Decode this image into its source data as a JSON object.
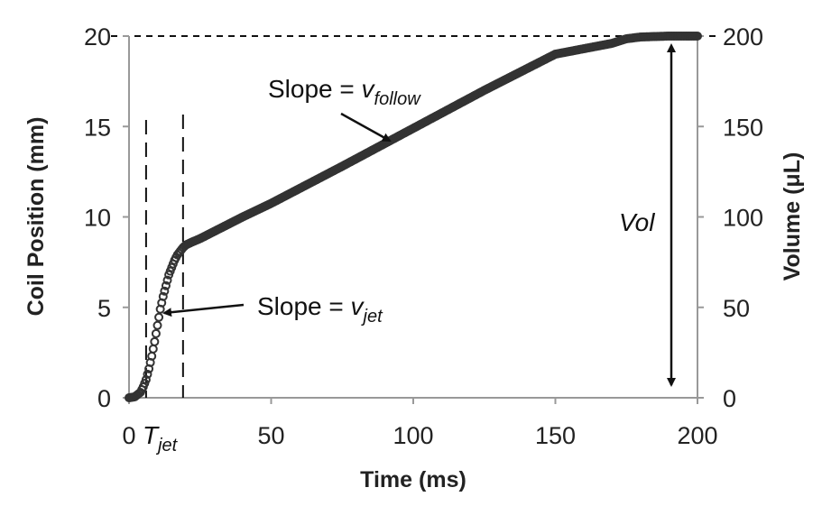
{
  "chart_data": {
    "type": "scatter",
    "xlabel": "Time (ms)",
    "ylabel_left": "Coil Position (mm)",
    "ylabel_right": "Volume (μL)",
    "xlim": [
      0,
      200
    ],
    "ylim_left": [
      0,
      20
    ],
    "ylim_right": [
      0,
      200
    ],
    "x_ticks": [
      0,
      50,
      100,
      150,
      200
    ],
    "y_ticks_left": [
      0,
      5,
      10,
      15,
      20
    ],
    "y_ticks_right": [
      0,
      50,
      100,
      150,
      200
    ],
    "grid": false,
    "series": [
      {
        "marker": "circle",
        "x": [
          0,
          2,
          4,
          5,
          6,
          7,
          8,
          9,
          10,
          11,
          12,
          13,
          14,
          15,
          16,
          17,
          18,
          19,
          20,
          22,
          25,
          30,
          40,
          50,
          75,
          100,
          125,
          150,
          170,
          175,
          180,
          190,
          200
        ],
        "y": [
          0,
          0.05,
          0.3,
          0.6,
          1.0,
          1.6,
          2.3,
          3.1,
          4.0,
          4.9,
          5.6,
          6.2,
          6.8,
          7.2,
          7.6,
          7.9,
          8.1,
          8.3,
          8.45,
          8.6,
          8.8,
          9.2,
          10.0,
          10.75,
          12.8,
          14.9,
          17.0,
          19.0,
          19.6,
          19.85,
          19.95,
          20,
          20
        ]
      }
    ],
    "reference_lines": {
      "top_dashed_y": 20,
      "t_start_x": 6,
      "t_end_x": 19
    },
    "annotations": {
      "slope_follow_prefix": "Slope = ",
      "slope_follow_var": "v",
      "slope_follow_sub": "follow",
      "slope_jet_prefix": "Slope = ",
      "slope_jet_var": "v",
      "slope_jet_sub": "jet",
      "tjet_var": "T",
      "tjet_sub": "jet",
      "vol_label": "Vol"
    },
    "colors": {
      "marker": "#333333",
      "axis": "#999999",
      "text": "#222222"
    }
  }
}
